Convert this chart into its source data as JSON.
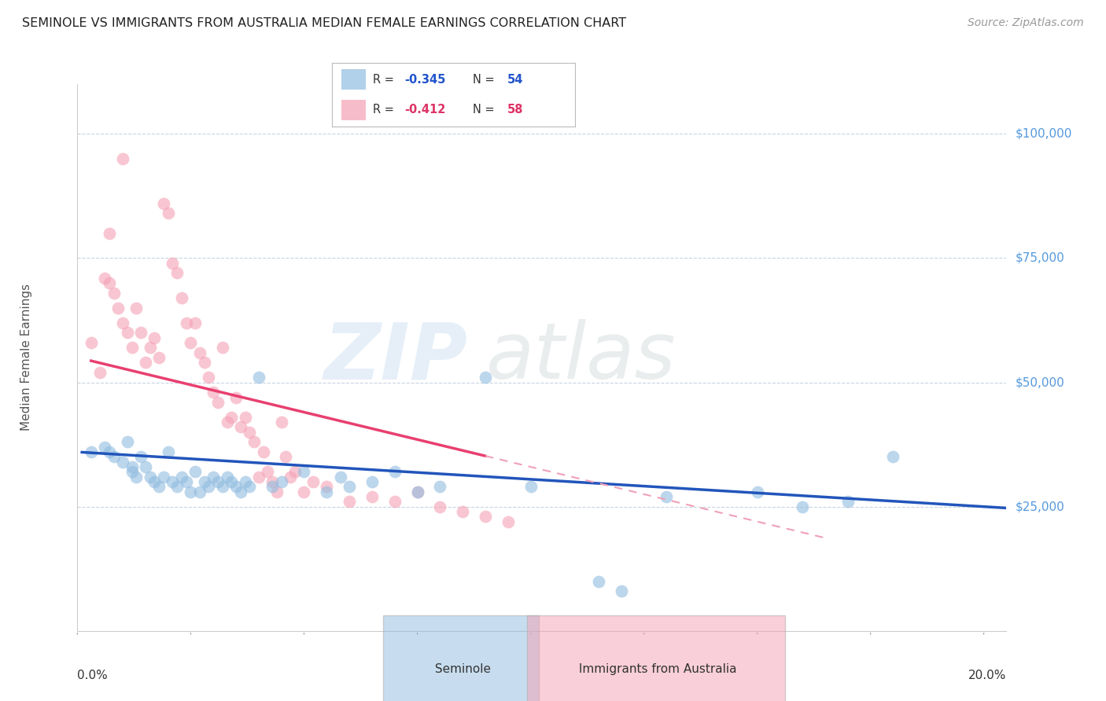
{
  "title": "SEMINOLE VS IMMIGRANTS FROM AUSTRALIA MEDIAN FEMALE EARNINGS CORRELATION CHART",
  "source": "Source: ZipAtlas.com",
  "ylabel": "Median Female Earnings",
  "ytick_labels": [
    "$25,000",
    "$50,000",
    "$75,000",
    "$100,000"
  ],
  "ytick_values": [
    25000,
    50000,
    75000,
    100000
  ],
  "ylim": [
    0,
    110000
  ],
  "xlim": [
    0.0,
    0.205
  ],
  "legend_r1": "R = -0.345   N = 54",
  "legend_r2": "R = -0.412   N = 58",
  "legend_r1_val": "-0.345",
  "legend_n1_val": "54",
  "legend_r2_val": "-0.412",
  "legend_n2_val": "58",
  "watermark_zip": "ZIP",
  "watermark_atlas": "atlas",
  "seminole_color": "#90bce0",
  "australia_color": "#f4a0b4",
  "trendline_seminole_color": "#2255bb",
  "trendline_australia_color": "#e84070",
  "trendline_australia_dashed_color": "#f0a0b8",
  "background_color": "#ffffff",
  "grid_color": "#c8d4e0",
  "ytick_color": "#5599dd",
  "seminole_points": [
    [
      0.003,
      36000
    ],
    [
      0.006,
      37000
    ],
    [
      0.007,
      36000
    ],
    [
      0.008,
      35000
    ],
    [
      0.01,
      34000
    ],
    [
      0.011,
      38000
    ],
    [
      0.012,
      32000
    ],
    [
      0.012,
      33000
    ],
    [
      0.013,
      31000
    ],
    [
      0.014,
      35000
    ],
    [
      0.015,
      33000
    ],
    [
      0.016,
      31000
    ],
    [
      0.017,
      30000
    ],
    [
      0.018,
      29000
    ],
    [
      0.019,
      31000
    ],
    [
      0.02,
      36000
    ],
    [
      0.021,
      30000
    ],
    [
      0.022,
      29000
    ],
    [
      0.023,
      31000
    ],
    [
      0.024,
      30000
    ],
    [
      0.025,
      28000
    ],
    [
      0.026,
      32000
    ],
    [
      0.027,
      28000
    ],
    [
      0.028,
      30000
    ],
    [
      0.029,
      29000
    ],
    [
      0.03,
      31000
    ],
    [
      0.031,
      30000
    ],
    [
      0.032,
      29000
    ],
    [
      0.033,
      31000
    ],
    [
      0.034,
      30000
    ],
    [
      0.035,
      29000
    ],
    [
      0.036,
      28000
    ],
    [
      0.037,
      30000
    ],
    [
      0.038,
      29000
    ],
    [
      0.04,
      51000
    ],
    [
      0.043,
      29000
    ],
    [
      0.045,
      30000
    ],
    [
      0.05,
      32000
    ],
    [
      0.055,
      28000
    ],
    [
      0.058,
      31000
    ],
    [
      0.06,
      29000
    ],
    [
      0.065,
      30000
    ],
    [
      0.07,
      32000
    ],
    [
      0.075,
      28000
    ],
    [
      0.08,
      29000
    ],
    [
      0.09,
      51000
    ],
    [
      0.1,
      29000
    ],
    [
      0.115,
      10000
    ],
    [
      0.12,
      8000
    ],
    [
      0.13,
      27000
    ],
    [
      0.15,
      28000
    ],
    [
      0.16,
      25000
    ],
    [
      0.17,
      26000
    ],
    [
      0.18,
      35000
    ]
  ],
  "australia_points": [
    [
      0.003,
      58000
    ],
    [
      0.005,
      52000
    ],
    [
      0.006,
      71000
    ],
    [
      0.007,
      70000
    ],
    [
      0.008,
      68000
    ],
    [
      0.009,
      65000
    ],
    [
      0.01,
      62000
    ],
    [
      0.011,
      60000
    ],
    [
      0.012,
      57000
    ],
    [
      0.013,
      65000
    ],
    [
      0.014,
      60000
    ],
    [
      0.015,
      54000
    ],
    [
      0.016,
      57000
    ],
    [
      0.017,
      59000
    ],
    [
      0.018,
      55000
    ],
    [
      0.019,
      86000
    ],
    [
      0.02,
      84000
    ],
    [
      0.021,
      74000
    ],
    [
      0.022,
      72000
    ],
    [
      0.023,
      67000
    ],
    [
      0.024,
      62000
    ],
    [
      0.025,
      58000
    ],
    [
      0.026,
      62000
    ],
    [
      0.027,
      56000
    ],
    [
      0.028,
      54000
    ],
    [
      0.029,
      51000
    ],
    [
      0.03,
      48000
    ],
    [
      0.031,
      46000
    ],
    [
      0.032,
      57000
    ],
    [
      0.033,
      42000
    ],
    [
      0.034,
      43000
    ],
    [
      0.035,
      47000
    ],
    [
      0.036,
      41000
    ],
    [
      0.037,
      43000
    ],
    [
      0.038,
      40000
    ],
    [
      0.039,
      38000
    ],
    [
      0.04,
      31000
    ],
    [
      0.041,
      36000
    ],
    [
      0.042,
      32000
    ],
    [
      0.043,
      30000
    ],
    [
      0.044,
      28000
    ],
    [
      0.045,
      42000
    ],
    [
      0.046,
      35000
    ],
    [
      0.047,
      31000
    ],
    [
      0.048,
      32000
    ],
    [
      0.05,
      28000
    ],
    [
      0.052,
      30000
    ],
    [
      0.055,
      29000
    ],
    [
      0.06,
      26000
    ],
    [
      0.065,
      27000
    ],
    [
      0.07,
      26000
    ],
    [
      0.075,
      28000
    ],
    [
      0.08,
      25000
    ],
    [
      0.085,
      24000
    ],
    [
      0.09,
      23000
    ],
    [
      0.095,
      22000
    ],
    [
      0.01,
      95000
    ],
    [
      0.007,
      80000
    ]
  ]
}
